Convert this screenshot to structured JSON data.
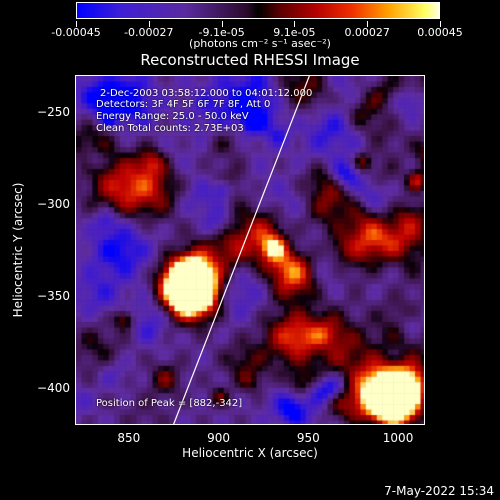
{
  "colorbar": {
    "labels": [
      "-0.00045",
      "-0.00027",
      "-9.1e-05",
      "9.1e-05",
      "0.00027",
      "0.00045"
    ],
    "unit": "(photons cm⁻² s⁻¹ asec⁻²)"
  },
  "info": {
    "line1": "2-Dec-2003 03:58:12.000 to 04:01:12.000",
    "line2": "Detectors: 3F 4F 5F 6F 7F 8F, Att 0",
    "line3": "Energy Range: 25.0 - 50.0 keV",
    "line4": "Clean     Total counts: 2.73E+03",
    "peak": "Position of Peak = [882,-342]"
  },
  "timestamp": "7-May-2022 15:34",
  "chart_data": {
    "type": "heatmap",
    "title": "Reconstructed RHESSI Image",
    "xlabel": "Heliocentric X (arcsec)",
    "ylabel": "Heliocentric Y (arcsec)",
    "xlim": [
      820,
      1015
    ],
    "ylim": [
      -420,
      -230
    ],
    "x_ticks": [
      850,
      900,
      950,
      1000
    ],
    "y_ticks": [
      -250,
      -300,
      -350,
      -400
    ],
    "color_range": [
      -0.00045,
      0.00045
    ],
    "peak": [
      882,
      -342
    ],
    "limb": [
      [
        874,
        -420
      ],
      [
        950,
        -230
      ]
    ],
    "colors": {
      "limb": "#ffffff",
      "low": "#0000ff",
      "high": "#ffffe0"
    }
  }
}
